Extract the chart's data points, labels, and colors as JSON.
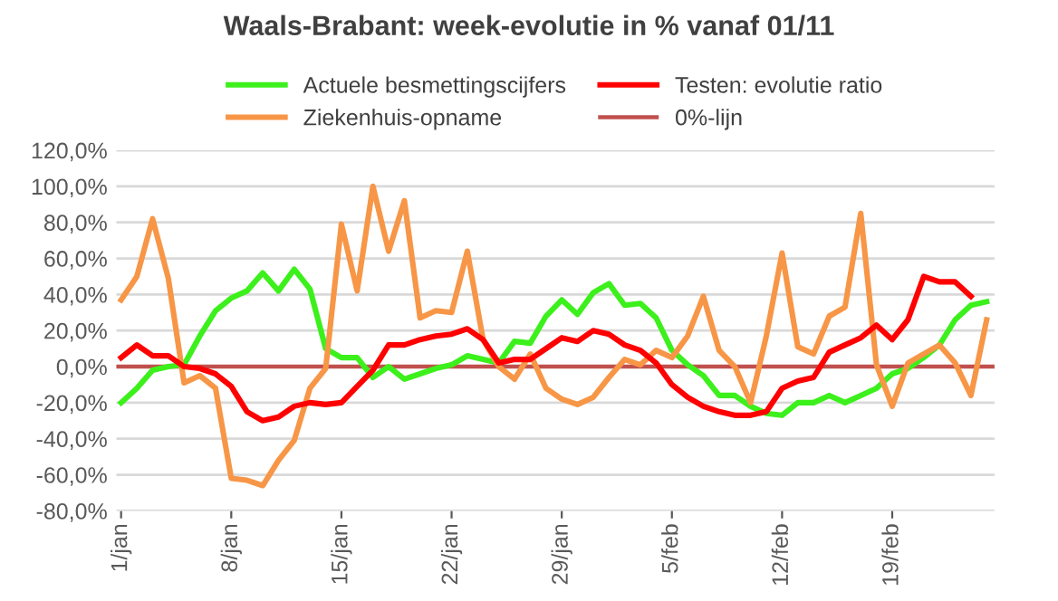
{
  "chart_data": {
    "type": "line",
    "title": "Waals-Brabant: week-evolutie in % vanaf 01/11",
    "categories": [
      "1/jan",
      null,
      null,
      null,
      null,
      null,
      null,
      "8/jan",
      null,
      null,
      null,
      null,
      null,
      null,
      "15/jan",
      null,
      null,
      null,
      null,
      null,
      null,
      "22/jan",
      null,
      null,
      null,
      null,
      null,
      null,
      "29/jan",
      null,
      null,
      null,
      null,
      null,
      null,
      "5/feb",
      null,
      null,
      null,
      null,
      null,
      null,
      "12/feb",
      null,
      null,
      null,
      null,
      null,
      null,
      "19/feb",
      null,
      null,
      null,
      null,
      null,
      null
    ],
    "series": [
      {
        "name": "Actuele besmettingscijfers",
        "color": "#3cf01c",
        "values": [
          -20,
          -12,
          -2,
          0,
          1,
          17,
          31,
          38,
          42,
          52,
          42,
          54,
          43,
          10,
          5,
          5,
          -6,
          0,
          -7,
          -4,
          -1,
          1,
          6,
          4,
          2,
          14,
          13,
          28,
          37,
          29,
          41,
          46,
          34,
          35,
          27,
          9,
          1,
          -5,
          -16,
          -16,
          -22,
          -26,
          -27,
          -20,
          -20,
          -16,
          -20,
          -16,
          -12,
          -4,
          -1,
          5,
          12,
          26,
          34,
          36
        ]
      },
      {
        "name": "Ziekenhuis-opname",
        "color": "#f79646",
        "values": [
          37,
          50,
          82,
          49,
          -9,
          -5,
          -12,
          -62,
          -63,
          -66,
          -52,
          -41,
          -12,
          -1,
          79,
          42,
          100,
          64,
          92,
          27,
          31,
          30,
          64,
          15,
          0,
          -7,
          7,
          -12,
          -18,
          -21,
          -17,
          -6,
          4,
          1,
          9,
          5,
          17,
          39,
          9,
          0,
          -20,
          17,
          63,
          11,
          7,
          28,
          33,
          85,
          1,
          -22,
          2,
          7,
          12,
          2,
          -16,
          26
        ]
      },
      {
        "name": "Testen: evolutie ratio",
        "color": "#ff0000",
        "values": [
          5,
          12,
          6,
          6,
          0,
          -1,
          -4,
          -11,
          -25,
          -30,
          -28,
          -22,
          -20,
          -21,
          -20,
          -11,
          -2,
          12,
          12,
          15,
          17,
          18,
          21,
          15,
          2,
          4,
          4,
          10,
          16,
          14,
          20,
          18,
          12,
          9,
          2,
          -10,
          -17,
          -22,
          -25,
          -27,
          -27,
          -25,
          -12,
          -8,
          -6,
          8,
          12,
          16,
          23,
          15,
          26,
          50,
          47,
          47,
          39,
          null
        ]
      }
    ],
    "ref_lines": [
      {
        "axis": "y",
        "value": 0,
        "label": "0%-lijn",
        "color": "#c0504d"
      }
    ],
    "ylim": [
      -80,
      120
    ],
    "yticks": [
      {
        "value": -80,
        "label": "-80,0%"
      },
      {
        "value": -60,
        "label": "-60,0%"
      },
      {
        "value": -40,
        "label": "-40,0%"
      },
      {
        "value": -20,
        "label": "-20,0%"
      },
      {
        "value": 0,
        "label": "0,0%"
      },
      {
        "value": 20,
        "label": "20,0%"
      },
      {
        "value": 40,
        "label": "40,0%"
      },
      {
        "value": 60,
        "label": "60,0%"
      },
      {
        "value": 80,
        "label": "80,0%"
      },
      {
        "value": 100,
        "label": "100,0%"
      },
      {
        "value": 120,
        "label": "120,0%"
      }
    ],
    "grid": "y",
    "legend": "top",
    "marker": "none",
    "line_style": "solid"
  }
}
